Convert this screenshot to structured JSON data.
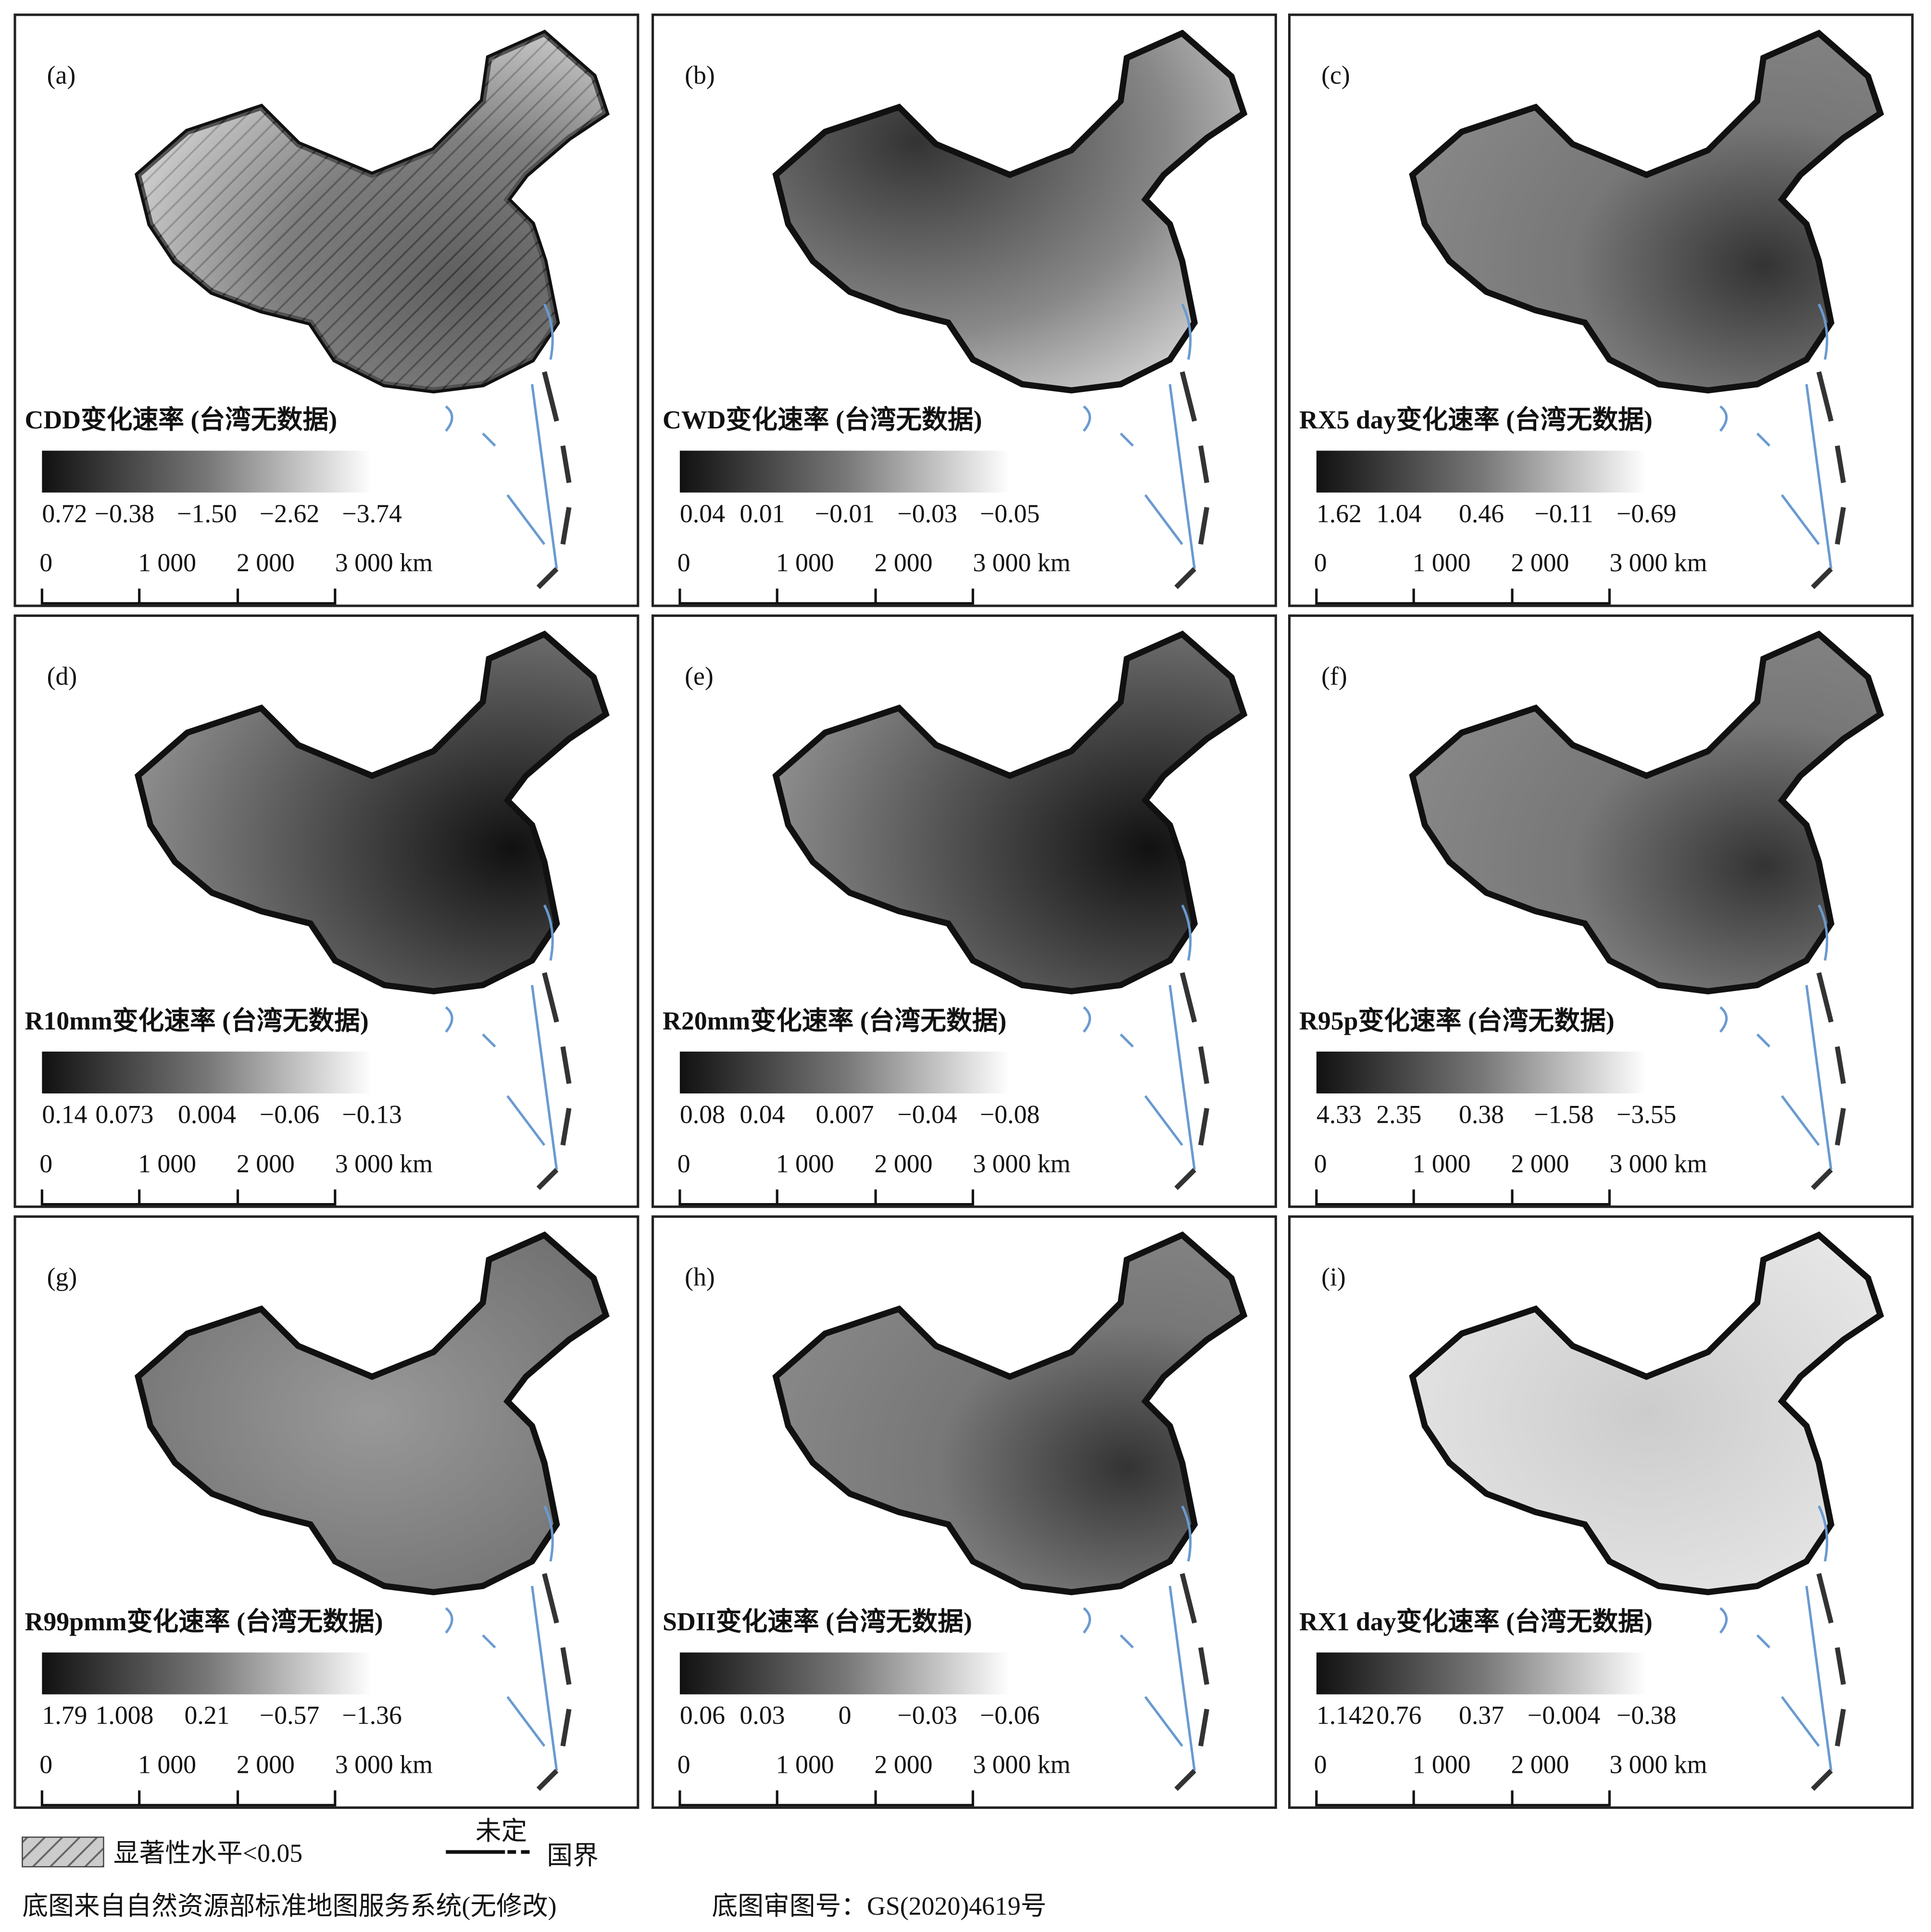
{
  "panels": [
    {
      "label": "(a)",
      "title": "CDD变化速率 (台湾无数据)",
      "legend": [
        "0.72",
        "−0.38",
        "−1.50",
        "−2.62",
        "−3.74"
      ]
    },
    {
      "label": "(b)",
      "title": "CWD变化速率 (台湾无数据)",
      "legend": [
        "0.04",
        "0.01",
        "−0.01",
        "−0.03",
        "−0.05"
      ]
    },
    {
      "label": "(c)",
      "title": "RX5 day变化速率 (台湾无数据)",
      "legend": [
        "1.62",
        "1.04",
        "0.46",
        "−0.11",
        "−0.69"
      ]
    },
    {
      "label": "(d)",
      "title": "R10mm变化速率 (台湾无数据)",
      "legend": [
        "0.14",
        "0.073",
        "0.004",
        "−0.06",
        "−0.13"
      ]
    },
    {
      "label": "(e)",
      "title": "R20mm变化速率 (台湾无数据)",
      "legend": [
        "0.08",
        "0.04",
        "0.007",
        "−0.04",
        "−0.08"
      ]
    },
    {
      "label": "(f)",
      "title": "R95p变化速率 (台湾无数据)",
      "legend": [
        "4.33",
        "2.35",
        "0.38",
        "−1.58",
        "−3.55"
      ]
    },
    {
      "label": "(g)",
      "title": "R99pmm变化速率 (台湾无数据)",
      "legend": [
        "1.79",
        "1.008",
        "0.21",
        "−0.57",
        "−1.36"
      ]
    },
    {
      "label": "(h)",
      "title": "SDII变化速率 (台湾无数据)",
      "legend": [
        "0.06",
        "0.03",
        "0",
        "−0.03",
        "−0.06"
      ]
    },
    {
      "label": "(i)",
      "title": "RX1 day变化速率 (台湾无数据)",
      "legend": [
        "1.142",
        "0.76",
        "0.37",
        "−0.004",
        "−0.38"
      ]
    }
  ],
  "scale_bar": [
    "0",
    "1 000",
    "2 000",
    "3 000 km"
  ],
  "footer": {
    "significance": "显著性水平<0.05",
    "undetermined": "未定",
    "border": "国界",
    "source": "底图来自自然资源部标准地图服务系统(无修改)",
    "approval": "底图审图号：GS(2020)4619号"
  }
}
